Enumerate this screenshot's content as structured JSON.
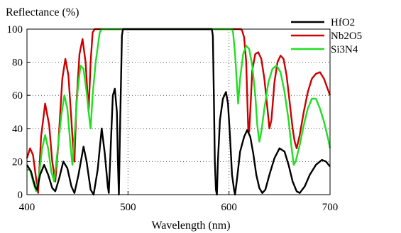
{
  "chart_data": {
    "type": "line",
    "title": "",
    "ylabel": "Reflectance (%)",
    "xlabel": "Wavelength (nm)",
    "xlim": [
      400,
      700
    ],
    "ylim": [
      0,
      100
    ],
    "xticks": [
      400,
      500,
      600,
      700
    ],
    "yticks": [
      0,
      20,
      40,
      60,
      80,
      100
    ],
    "grid": "dotted",
    "legend_position": "top-right",
    "series": [
      {
        "name": "HfO2",
        "color": "#000000",
        "points": [
          [
            400,
            18
          ],
          [
            404,
            14
          ],
          [
            408,
            5
          ],
          [
            410,
            3
          ],
          [
            413,
            12
          ],
          [
            417,
            18
          ],
          [
            421,
            12
          ],
          [
            425,
            4
          ],
          [
            428,
            2
          ],
          [
            432,
            10
          ],
          [
            436,
            20
          ],
          [
            440,
            16
          ],
          [
            444,
            5
          ],
          [
            447,
            1
          ],
          [
            451,
            12
          ],
          [
            456,
            29
          ],
          [
            459,
            20
          ],
          [
            463,
            3
          ],
          [
            466,
            0
          ],
          [
            470,
            15
          ],
          [
            474,
            40
          ],
          [
            477,
            25
          ],
          [
            480,
            5
          ],
          [
            481,
            1
          ],
          [
            483,
            30
          ],
          [
            485,
            60
          ],
          [
            487,
            64
          ],
          [
            489,
            50
          ],
          [
            490,
            20
          ],
          [
            491,
            0
          ],
          [
            492,
            35
          ],
          [
            494,
            96
          ],
          [
            495,
            100
          ],
          [
            583,
            100
          ],
          [
            584,
            96
          ],
          [
            585,
            60
          ],
          [
            586,
            20
          ],
          [
            587,
            3
          ],
          [
            588,
            0
          ],
          [
            589,
            20
          ],
          [
            591,
            45
          ],
          [
            594,
            58
          ],
          [
            597,
            62
          ],
          [
            599,
            55
          ],
          [
            601,
            35
          ],
          [
            603,
            12
          ],
          [
            605,
            3
          ],
          [
            606,
            0
          ],
          [
            608,
            10
          ],
          [
            611,
            26
          ],
          [
            615,
            35
          ],
          [
            618,
            39
          ],
          [
            621,
            35
          ],
          [
            624,
            25
          ],
          [
            627,
            12
          ],
          [
            630,
            4
          ],
          [
            633,
            1
          ],
          [
            636,
            3
          ],
          [
            640,
            12
          ],
          [
            645,
            22
          ],
          [
            650,
            28
          ],
          [
            655,
            26
          ],
          [
            659,
            18
          ],
          [
            663,
            8
          ],
          [
            667,
            2
          ],
          [
            670,
            1
          ],
          [
            675,
            5
          ],
          [
            680,
            12
          ],
          [
            686,
            18
          ],
          [
            692,
            21
          ],
          [
            696,
            20
          ],
          [
            700,
            17
          ]
        ]
      },
      {
        "name": "Nb2O5",
        "color": "#cc0000",
        "points": [
          [
            400,
            22
          ],
          [
            403,
            28
          ],
          [
            406,
            24
          ],
          [
            409,
            10
          ],
          [
            411,
            1
          ],
          [
            414,
            35
          ],
          [
            418,
            55
          ],
          [
            422,
            42
          ],
          [
            425,
            20
          ],
          [
            428,
            8
          ],
          [
            431,
            30
          ],
          [
            435,
            70
          ],
          [
            438,
            82
          ],
          [
            441,
            72
          ],
          [
            444,
            45
          ],
          [
            446,
            25
          ],
          [
            447,
            20
          ],
          [
            449,
            55
          ],
          [
            452,
            85
          ],
          [
            455,
            94
          ],
          [
            458,
            80
          ],
          [
            460,
            60
          ],
          [
            461,
            50
          ],
          [
            463,
            80
          ],
          [
            465,
            98
          ],
          [
            467,
            100
          ],
          [
            612,
            100
          ],
          [
            613,
            99
          ],
          [
            615,
            95
          ],
          [
            617,
            80
          ],
          [
            618,
            60
          ],
          [
            619,
            40
          ],
          [
            620,
            38
          ],
          [
            621,
            50
          ],
          [
            623,
            75
          ],
          [
            626,
            85
          ],
          [
            629,
            86
          ],
          [
            632,
            82
          ],
          [
            635,
            70
          ],
          [
            638,
            52
          ],
          [
            640,
            40
          ],
          [
            642,
            45
          ],
          [
            645,
            68
          ],
          [
            648,
            80
          ],
          [
            651,
            84
          ],
          [
            654,
            82
          ],
          [
            657,
            72
          ],
          [
            660,
            56
          ],
          [
            663,
            40
          ],
          [
            665,
            32
          ],
          [
            667,
            28
          ],
          [
            670,
            36
          ],
          [
            674,
            50
          ],
          [
            678,
            62
          ],
          [
            682,
            70
          ],
          [
            686,
            73
          ],
          [
            690,
            74
          ],
          [
            694,
            70
          ],
          [
            697,
            65
          ],
          [
            700,
            60
          ]
        ]
      },
      {
        "name": "Si3N4",
        "color": "#22dd22",
        "points": [
          [
            400,
            15
          ],
          [
            403,
            15
          ],
          [
            406,
            8
          ],
          [
            409,
            2
          ],
          [
            412,
            12
          ],
          [
            415,
            28
          ],
          [
            418,
            36
          ],
          [
            421,
            28
          ],
          [
            424,
            14
          ],
          [
            427,
            8
          ],
          [
            430,
            25
          ],
          [
            434,
            48
          ],
          [
            437,
            60
          ],
          [
            440,
            52
          ],
          [
            443,
            30
          ],
          [
            445,
            18
          ],
          [
            447,
            35
          ],
          [
            450,
            62
          ],
          [
            453,
            78
          ],
          [
            456,
            76
          ],
          [
            459,
            62
          ],
          [
            462,
            45
          ],
          [
            463,
            40
          ],
          [
            465,
            60
          ],
          [
            468,
            80
          ],
          [
            472,
            98
          ],
          [
            474,
            100
          ],
          [
            603,
            100
          ],
          [
            604,
            98
          ],
          [
            606,
            85
          ],
          [
            608,
            65
          ],
          [
            609,
            55
          ],
          [
            611,
            70
          ],
          [
            614,
            85
          ],
          [
            617,
            90
          ],
          [
            620,
            88
          ],
          [
            623,
            78
          ],
          [
            626,
            60
          ],
          [
            628,
            42
          ],
          [
            630,
            32
          ],
          [
            632,
            38
          ],
          [
            635,
            52
          ],
          [
            639,
            68
          ],
          [
            643,
            76
          ],
          [
            647,
            78
          ],
          [
            651,
            74
          ],
          [
            655,
            62
          ],
          [
            659,
            45
          ],
          [
            662,
            28
          ],
          [
            664,
            18
          ],
          [
            666,
            20
          ],
          [
            670,
            30
          ],
          [
            674,
            42
          ],
          [
            678,
            52
          ],
          [
            682,
            58
          ],
          [
            686,
            58
          ],
          [
            690,
            52
          ],
          [
            694,
            44
          ],
          [
            698,
            34
          ],
          [
            700,
            28
          ]
        ]
      }
    ]
  }
}
